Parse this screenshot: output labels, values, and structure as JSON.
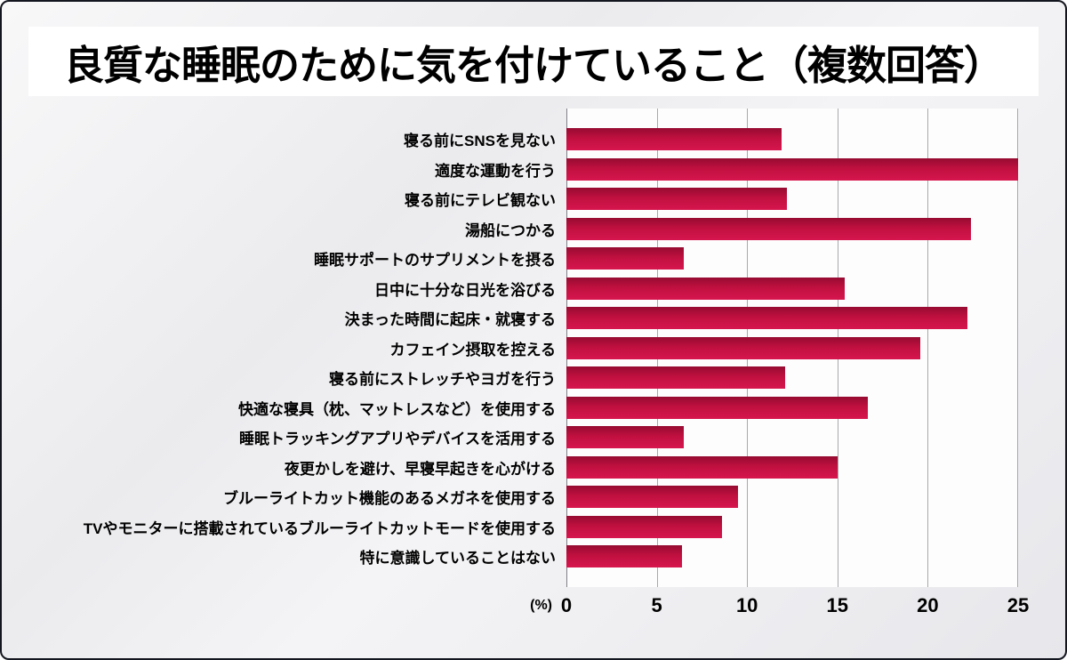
{
  "title": "良質な睡眠のために気を付けていること（複数回答）",
  "axis": {
    "unit_label": "(%)"
  },
  "chart_data": {
    "type": "bar",
    "orientation": "horizontal",
    "title": "良質な睡眠のために気を付けていること（複数回答）",
    "xlabel": "(%)",
    "ylabel": "",
    "xlim": [
      0,
      25
    ],
    "xticks": [
      0,
      5,
      10,
      15,
      20,
      25
    ],
    "grid": true,
    "legend": "none",
    "bar_color_top": "#960b31",
    "bar_color_bottom": "#d6164e",
    "categories": [
      "寝る前にSNSを見ない",
      "適度な運動を行う",
      "寝る前にテレビ観ない",
      "湯船につかる",
      "睡眠サポートのサプリメントを摂る",
      "日中に十分な日光を浴びる",
      "決まった時間に起床・就寝する",
      "カフェイン摂取を控える",
      "寝る前にストレッチやヨガを行う",
      "快適な寝具（枕、マットレスなど）を使用する",
      "睡眠トラッキングアプリやデバイスを活用する",
      "夜更かしを避け、早寝早起きを心がける",
      "ブルーライトカット機能のあるメガネを使用する",
      "TVやモニターに搭載されているブルーライトカットモードを使用する",
      "特に意識していることはない"
    ],
    "values": [
      11.9,
      25.0,
      12.2,
      22.4,
      6.5,
      15.4,
      22.2,
      19.6,
      12.1,
      16.7,
      6.5,
      15.0,
      9.5,
      8.6,
      6.4
    ]
  }
}
